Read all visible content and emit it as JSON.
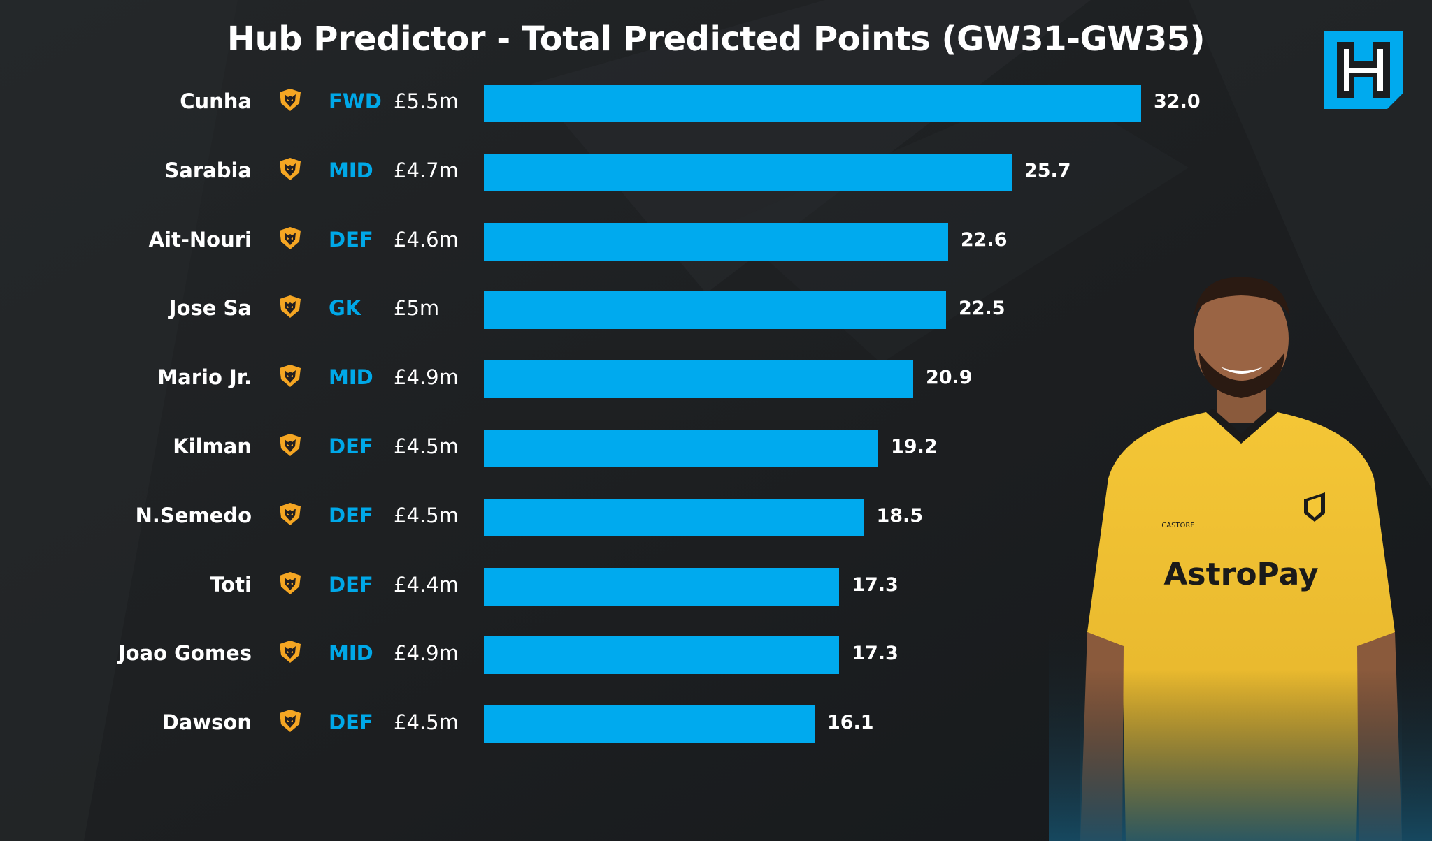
{
  "title": "Hub Predictor - Total Predicted Points (GW31-GW35)",
  "brand": {
    "accent": "#00aaee",
    "position_color": "#00a8e8",
    "background": "#1b1d1f",
    "crest_color": "#f5a623"
  },
  "logo": {
    "icon": "hub-h-logo-icon"
  },
  "player_image": {
    "icon": "player-photo",
    "shirt_sponsor": "AstroPay",
    "shirt_brand": "CASTORE"
  },
  "chart_data": {
    "type": "bar",
    "orientation": "horizontal",
    "title": "Hub Predictor - Total Predicted Points (GW31-GW35)",
    "xlim": [
      0,
      32
    ],
    "grid": false,
    "categories": [
      "Cunha",
      "Sarabia",
      "Ait-Nouri",
      "Jose Sa",
      "Mario Jr.",
      "Kilman",
      "N.Semedo",
      "Toti",
      "Joao Gomes",
      "Dawson"
    ],
    "values": [
      32.0,
      25.7,
      22.6,
      22.5,
      20.9,
      19.2,
      18.5,
      17.3,
      17.3,
      16.1
    ],
    "value_labels": [
      "32.0",
      "25.7",
      "22.6",
      "22.5",
      "20.9",
      "19.2",
      "18.5",
      "17.3",
      "17.3",
      "16.1"
    ],
    "positions": [
      "FWD",
      "MID",
      "DEF",
      "GK",
      "MID",
      "DEF",
      "DEF",
      "DEF",
      "MID",
      "DEF"
    ],
    "prices": [
      "£5.5m",
      "£4.7m",
      "£4.6m",
      "£5m",
      "£4.9m",
      "£4.5m",
      "£4.5m",
      "£4.4m",
      "£4.9m",
      "£4.5m"
    ],
    "team_icon": "wolves-crest-icon"
  }
}
